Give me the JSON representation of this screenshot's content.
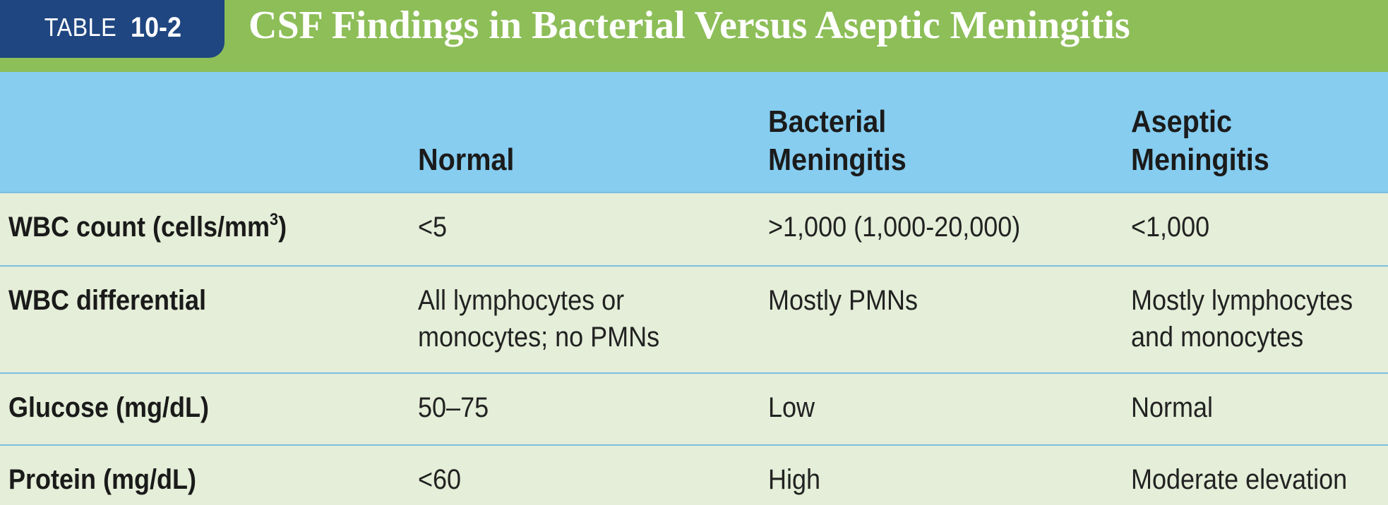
{
  "header": {
    "tag_word": "TABLE",
    "tag_number": "10-2",
    "title": "CSF Findings in Bacterial Versus Aseptic Meningitis"
  },
  "columns": {
    "normal": "Normal",
    "bacterial": [
      "Bacterial",
      "Meningitis"
    ],
    "aseptic": [
      "Aseptic",
      "Meningitis"
    ]
  },
  "rows": [
    {
      "label": "WBC count (cells/mm",
      "label_sup": "3",
      "label_close": ")",
      "normal": [
        "<5"
      ],
      "bacterial": [
        ">1,000 (1,000-20,000)"
      ],
      "aseptic": [
        "<1,000"
      ]
    },
    {
      "label": "WBC differential",
      "normal": [
        "All lymphocytes or",
        "monocytes; no PMNs"
      ],
      "bacterial": [
        "Mostly PMNs"
      ],
      "aseptic": [
        "Mostly lymphocytes",
        "and monocytes"
      ]
    },
    {
      "label": "Glucose (mg/dL)",
      "normal": [
        "50–75"
      ],
      "bacterial": [
        "Low"
      ],
      "aseptic": [
        "Normal"
      ]
    },
    {
      "label": "Protein (mg/dL)",
      "normal": [
        "<60"
      ],
      "bacterial": [
        "High"
      ],
      "aseptic": [
        "Moderate elevation"
      ]
    }
  ],
  "colors": {
    "header_green": "#8dbe58",
    "tag_navy": "#1f4680",
    "column_header_blue": "#86cdf0",
    "body_background": "#e4eed8",
    "row_divider": "#7fbde2"
  }
}
